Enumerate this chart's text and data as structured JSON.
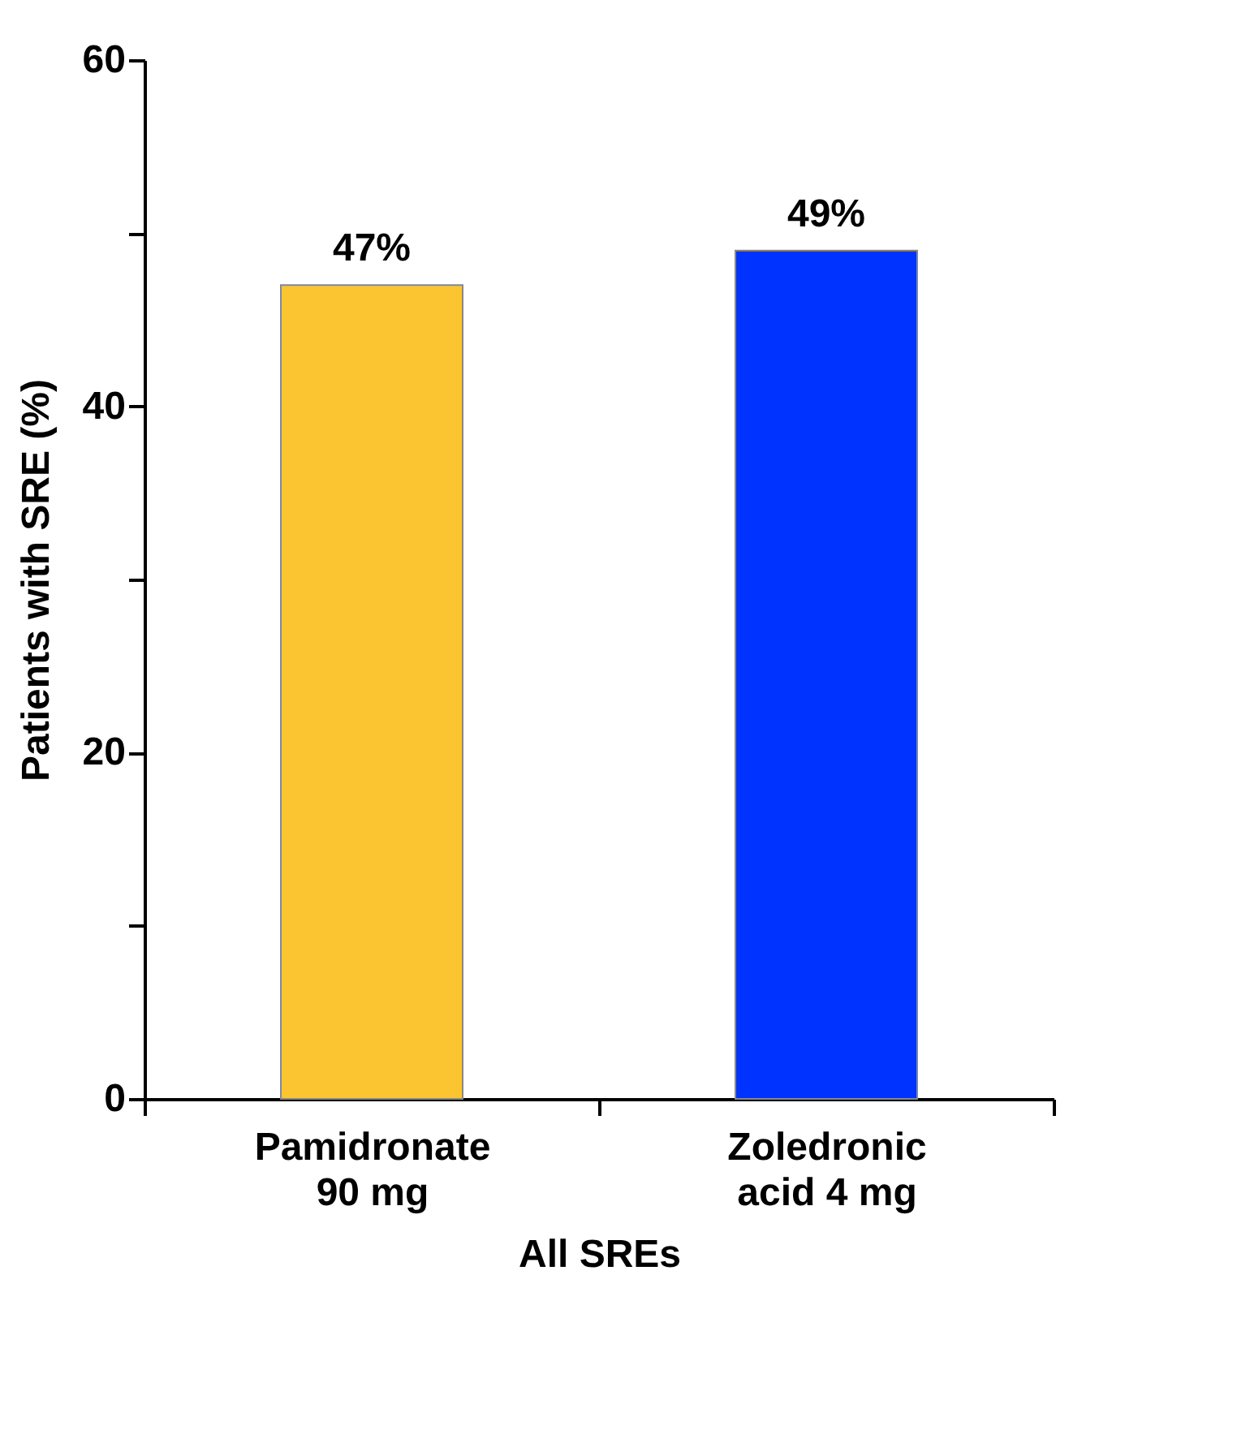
{
  "chart_data": {
    "type": "bar",
    "categories": [
      "Pamidronate\n90 mg",
      "Zoledronic\nacid 4 mg"
    ],
    "values": [
      47,
      49
    ],
    "colors": [
      "#fbc531",
      "#0033ff"
    ],
    "value_labels": [
      "47%",
      "49%"
    ],
    "xlabel": "All SREs",
    "ylabel": "Patients with SRE (%)",
    "ylim": [
      0,
      60
    ],
    "yticks": [
      0,
      {
        "value": 10,
        "label": null
      },
      20,
      {
        "value": 30,
        "label": null
      },
      40,
      {
        "value": 50,
        "label": null
      },
      60
    ],
    "grid": false
  }
}
